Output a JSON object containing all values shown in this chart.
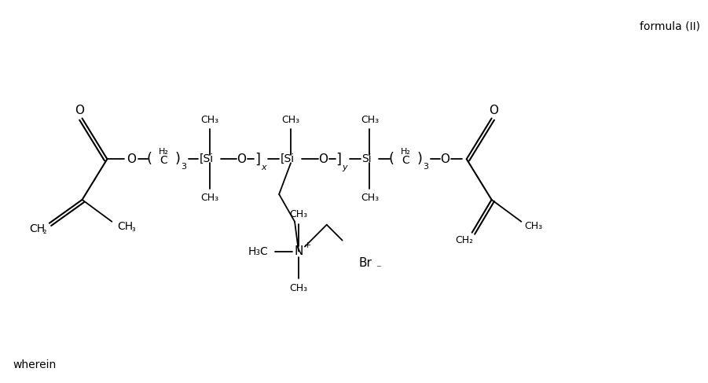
{
  "background_color": "#ffffff",
  "text_color": "#000000",
  "figsize": [
    9.01,
    4.87
  ],
  "dpi": 100,
  "formula_label": "formula (II)",
  "footer_label": "wherein",
  "br_label": "Br",
  "br_sup": "⁻"
}
